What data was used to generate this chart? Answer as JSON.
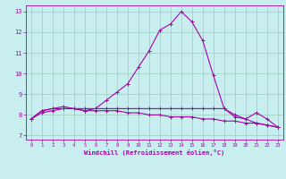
{
  "xlabel": "Windchill (Refroidissement éolien,°C)",
  "background_color": "#c8eef0",
  "grid_color": "#99ccbb",
  "line_color": "#aa00aa",
  "xlim": [
    -0.5,
    23.5
  ],
  "ylim": [
    6.8,
    13.3
  ],
  "yticks": [
    7,
    8,
    9,
    10,
    11,
    12,
    13
  ],
  "xticks": [
    0,
    1,
    2,
    3,
    4,
    5,
    6,
    7,
    8,
    9,
    10,
    11,
    12,
    13,
    14,
    15,
    16,
    17,
    18,
    19,
    20,
    21,
    22,
    23
  ],
  "line1_x": [
    0,
    1,
    2,
    3,
    4,
    5,
    6,
    7,
    8,
    9,
    10,
    11,
    12,
    13,
    14,
    15,
    16,
    17,
    18,
    19,
    20,
    21,
    22,
    23
  ],
  "line1_y": [
    7.8,
    8.2,
    8.3,
    8.4,
    8.3,
    8.2,
    8.3,
    8.7,
    9.1,
    9.5,
    10.3,
    11.1,
    12.1,
    12.4,
    13.0,
    12.5,
    11.6,
    9.9,
    8.3,
    7.9,
    7.8,
    8.1,
    7.8,
    7.4
  ],
  "line2_x": [
    0,
    1,
    2,
    3,
    4,
    5,
    6,
    7,
    8,
    9,
    10,
    11,
    12,
    13,
    14,
    15,
    16,
    17,
    18,
    19,
    20,
    21,
    22,
    23
  ],
  "line2_y": [
    7.8,
    8.2,
    8.3,
    8.3,
    8.3,
    8.3,
    8.3,
    8.3,
    8.3,
    8.3,
    8.3,
    8.3,
    8.3,
    8.3,
    8.3,
    8.3,
    8.3,
    8.3,
    8.3,
    8.0,
    7.8,
    7.6,
    7.5,
    7.4
  ],
  "line3_x": [
    0,
    1,
    2,
    3,
    4,
    5,
    6,
    7,
    8,
    9,
    10,
    11,
    12,
    13,
    14,
    15,
    16,
    17,
    18,
    19,
    20,
    21,
    22,
    23
  ],
  "line3_y": [
    7.8,
    8.1,
    8.2,
    8.3,
    8.3,
    8.2,
    8.2,
    8.2,
    8.2,
    8.1,
    8.1,
    8.0,
    8.0,
    7.9,
    7.9,
    7.9,
    7.8,
    7.8,
    7.7,
    7.7,
    7.6,
    7.6,
    7.5,
    7.4
  ]
}
